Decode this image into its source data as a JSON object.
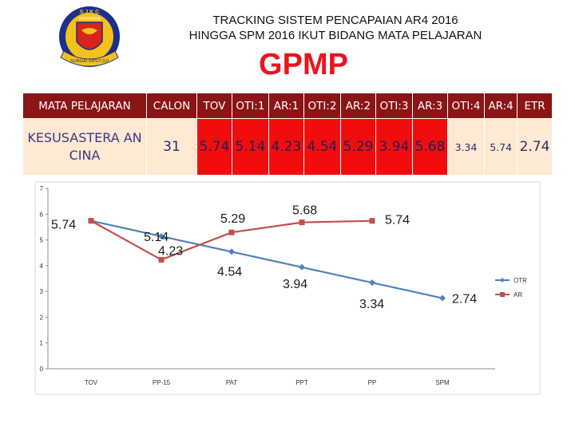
{
  "header": {
    "title_line1": "TRACKING SISTEM PENCAPAIAN AR4 2016",
    "title_line2": "HINGGA SPM 2016 IKUT BIDANG MATA PELAJARAN",
    "subject_code": "GPMP",
    "logo": {
      "icon": "school-crest-icon",
      "text_top": "S J K C",
      "text_mid": "SHOOKHIN",
      "text_bottom": "SUNGAI SIPUT (U)"
    }
  },
  "table": {
    "headers": [
      "MATA PELAJARAN",
      "CALON",
      "TOV",
      "OTI:1",
      "AR:1",
      "OTI:2",
      "AR:2",
      "OTI:3",
      "AR:3",
      "OTI:4",
      "AR:4",
      "ETR"
    ],
    "row": {
      "subject": "KESUSASTERA AN CINA",
      "calon": "31",
      "tov": "5.74",
      "oti1": "5.14",
      "ar1": "4.23",
      "oti2": "4.54",
      "ar2": "5.29",
      "oti3": "3.94",
      "ar3": "5.68",
      "oti4": "3.34",
      "ar4": "5.74",
      "etr": "2.74"
    }
  },
  "chart_data": {
    "type": "line",
    "categories": [
      "TOV",
      "PP-15",
      "PAT",
      "PPT",
      "PP",
      "SPM"
    ],
    "series": [
      {
        "name": "OTR",
        "values": [
          5.74,
          5.14,
          4.54,
          3.94,
          3.34,
          2.74
        ],
        "color": "#4f81bd",
        "marker": "diamond"
      },
      {
        "name": "AR",
        "values": [
          5.74,
          4.23,
          5.29,
          5.68,
          5.74,
          null
        ],
        "color": "#c0504d",
        "marker": "square"
      }
    ],
    "ylim": [
      0,
      7
    ],
    "yticks": [
      0,
      1,
      2,
      3,
      4,
      5,
      6,
      7
    ],
    "grid": false,
    "legend": "right",
    "data_labels": [
      {
        "text": "5.74",
        "series": "OTR",
        "index": 0
      },
      {
        "text": "5.14",
        "series": "OTR",
        "index": 1
      },
      {
        "text": "4.54",
        "series": "OTR",
        "index": 2
      },
      {
        "text": "3.94",
        "series": "OTR",
        "index": 3
      },
      {
        "text": "3.34",
        "series": "OTR",
        "index": 4
      },
      {
        "text": "2.74",
        "series": "OTR",
        "index": 5
      },
      {
        "text": "4.23",
        "series": "AR",
        "index": 1
      },
      {
        "text": "5.29",
        "series": "AR",
        "index": 2
      },
      {
        "text": "5.68",
        "series": "AR",
        "index": 3
      },
      {
        "text": "5.74",
        "series": "AR",
        "index": 4
      }
    ]
  }
}
